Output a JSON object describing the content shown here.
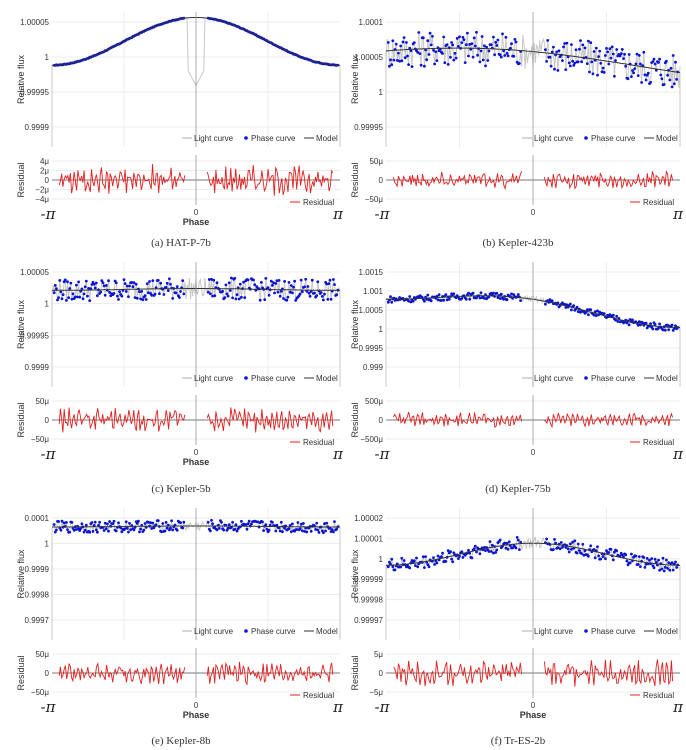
{
  "colors": {
    "light_curve": "#c8c8c8",
    "phase_curve": "#0a14d2",
    "model": "#333333",
    "residual": "#e02020",
    "grid": "#ececec"
  },
  "chart_data": [
    {
      "type": "line",
      "caption": "(a) HAT-P-7b",
      "ylabel": "Relative flux",
      "ylabel_residual": "Residual",
      "xlabel": "Phase",
      "x_ticks": [
        "-π",
        "0",
        "π"
      ],
      "y_ticks": [
        "1.00005",
        "1",
        "0.99995",
        "0.9999"
      ],
      "y_ticks_residual": [
        "4μ",
        "2μ",
        "0",
        "−2μ",
        "−4μ"
      ],
      "legend": [
        "Light curve",
        "Phase curve",
        "Model"
      ],
      "legend_residual": "Residual",
      "ylim": [
        0.99987,
        1.000068
      ],
      "ylim_residual": [
        -5,
        5
      ],
      "series": [
        {
          "name": "Model",
          "shape": "arch",
          "base": 0.99999,
          "amplitude": 7e-05,
          "noise": 5e-07,
          "transit": 0.99996
        },
        {
          "name": "Residual",
          "amplitude": 2.5
        }
      ]
    },
    {
      "type": "line",
      "caption": "(b) Kepler-423b",
      "ylabel": "Relative flux",
      "ylabel_residual": "Residual",
      "xlabel": "",
      "x_ticks": [
        "-π",
        "0",
        "π"
      ],
      "y_ticks": [
        "1.0001",
        "1.00005",
        "1",
        "0.99995"
      ],
      "y_ticks_residual": [
        "50μ",
        "0",
        "−50μ"
      ],
      "legend": [
        "Light curve",
        "Phase curve",
        "Model"
      ],
      "legend_residual": "Residual",
      "ylim": [
        0.99993,
        1.00012
      ],
      "ylim_residual": [
        -70,
        70
      ],
      "series": [
        {
          "name": "Model",
          "shape": "slope",
          "base": 1.00005,
          "amplitude": 2e-05,
          "noise": 2.5e-05
        },
        {
          "name": "Residual",
          "amplitude": 20
        }
      ]
    },
    {
      "type": "line",
      "caption": "(c) Kepler-5b",
      "ylabel": "Relative flux",
      "ylabel_residual": "Residual",
      "xlabel": "Phase",
      "x_ticks": [
        "-π",
        "0",
        "π"
      ],
      "y_ticks": [
        "1.00005",
        "1",
        "0.99995",
        "0.9999"
      ],
      "y_ticks_residual": [
        "50μ",
        "0",
        "−50μ"
      ],
      "legend": [
        "Light curve",
        "Phase curve",
        "Model"
      ],
      "legend_residual": "Residual",
      "ylim": [
        0.99986,
        1.000065
      ],
      "ylim_residual": [
        -60,
        60
      ],
      "series": [
        {
          "name": "Model",
          "shape": "flat",
          "base": 1.00002,
          "amplitude": 1.5e-06,
          "noise": 1.8e-05
        },
        {
          "name": "Residual",
          "amplitude": 25
        }
      ]
    },
    {
      "type": "line",
      "caption": "(d) Kepler-75b",
      "ylabel": "Relative flux",
      "ylabel_residual": "Residual",
      "xlabel": "",
      "x_ticks": [
        "-π",
        "0",
        "π"
      ],
      "y_ticks": [
        "1.0015",
        "1.001",
        "1.0005",
        "1",
        "0.9995",
        "0.999"
      ],
      "y_ticks_residual": [
        "500μ",
        "0",
        "−500μ"
      ],
      "legend": [
        "Light curve",
        "Phase curve",
        "Model"
      ],
      "legend_residual": "Residual",
      "ylim": [
        0.9985,
        1.0016
      ],
      "ylim_residual": [
        -600,
        600
      ],
      "series": [
        {
          "name": "Model",
          "shape": "trend",
          "base": 1.0005,
          "amplitude": 0.0007,
          "noise": 8e-05
        },
        {
          "name": "Residual",
          "amplitude": 150
        }
      ]
    },
    {
      "type": "line",
      "caption": "(e) Kepler-8b",
      "ylabel": "Relative flux",
      "ylabel_residual": "Residual",
      "xlabel": "Phase",
      "x_ticks": [
        "-π",
        "0",
        "π"
      ],
      "y_ticks": [
        "0.0001",
        "1",
        "0.9999",
        "0.9998",
        "0.9997"
      ],
      "y_ticks_residual": [
        "50μ",
        "0",
        "−50μ"
      ],
      "legend": [
        "Light curve",
        "Phase curve",
        "Model"
      ],
      "legend_residual": "Residual",
      "ylim": [
        0.99963,
        1.00013
      ],
      "ylim_residual": [
        -80,
        80
      ],
      "series": [
        {
          "name": "Model",
          "shape": "flat",
          "base": 1.00006,
          "amplitude": 2e-06,
          "noise": 2.2e-05
        },
        {
          "name": "Residual",
          "amplitude": 30
        }
      ]
    },
    {
      "type": "line",
      "caption": "(f) Tr-ES-2b",
      "ylabel": "Relative flux",
      "ylabel_residual": "Residual",
      "xlabel": "Phase",
      "x_ticks": [
        "-π",
        "0",
        "π"
      ],
      "y_ticks": [
        "1.00002",
        "1.00001",
        "1",
        "0.99999",
        "0.99998",
        "0.99997"
      ],
      "y_ticks_residual": [
        "5μ",
        "0",
        "−5μ"
      ],
      "legend": [
        "Light curve",
        "Phase curve",
        "Model"
      ],
      "legend_residual": "Residual",
      "ylim": [
        0.999966,
        1.000026
      ],
      "ylim_residual": [
        -7,
        7
      ],
      "series": [
        {
          "name": "Model",
          "shape": "arch",
          "base": 1.0,
          "amplitude": 1e-05,
          "noise": 3e-06
        },
        {
          "name": "Residual",
          "amplitude": 3
        }
      ]
    }
  ]
}
